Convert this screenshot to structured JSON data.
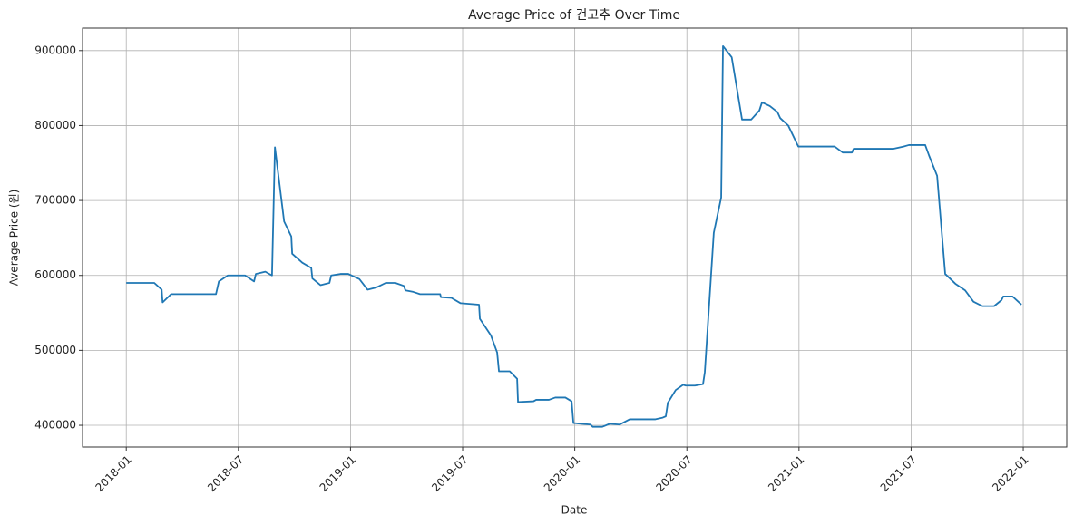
{
  "chart_data": {
    "type": "line",
    "title": "Average Price of 건고추 Over Time",
    "xlabel": "Date",
    "ylabel": "Average Price (원)",
    "grid": true,
    "xlim": [
      2017.805,
      2022.194
    ],
    "ylim": [
      371000,
      930000
    ],
    "xticks": [
      {
        "value": 2018.0,
        "label": "2018-01"
      },
      {
        "value": 2018.5,
        "label": "2018-07"
      },
      {
        "value": 2019.0,
        "label": "2019-01"
      },
      {
        "value": 2019.5,
        "label": "2019-07"
      },
      {
        "value": 2020.0,
        "label": "2020-01"
      },
      {
        "value": 2020.5,
        "label": "2020-07"
      },
      {
        "value": 2021.0,
        "label": "2021-01"
      },
      {
        "value": 2021.5,
        "label": "2021-07"
      },
      {
        "value": 2022.0,
        "label": "2022-01"
      }
    ],
    "yticks": [
      400000,
      500000,
      600000,
      700000,
      800000,
      900000
    ],
    "x": [
      2018.0,
      2018.125,
      2018.158,
      2018.162,
      2018.2,
      2018.4,
      2018.413,
      2018.453,
      2018.53,
      2018.57,
      2018.578,
      2018.62,
      2018.65,
      2018.663,
      2018.704,
      2018.736,
      2018.74,
      2018.785,
      2018.825,
      2018.83,
      2018.866,
      2018.906,
      2018.914,
      2018.955,
      2018.99,
      2019.04,
      2019.076,
      2019.116,
      2019.157,
      2019.2,
      2019.238,
      2019.245,
      2019.28,
      2019.31,
      2019.4,
      2019.403,
      2019.45,
      2019.49,
      2019.573,
      2019.577,
      2019.626,
      2019.654,
      2019.662,
      2019.71,
      2019.743,
      2019.747,
      2019.816,
      2019.828,
      2019.885,
      2019.913,
      2019.958,
      2019.986,
      2019.994,
      2020.07,
      2020.08,
      2020.123,
      2020.156,
      2020.2,
      2020.245,
      2020.36,
      2020.39,
      2020.406,
      2020.415,
      2020.45,
      2020.483,
      2020.495,
      2020.536,
      2020.572,
      2020.58,
      2020.62,
      2020.653,
      2020.661,
      2020.7,
      2020.746,
      2020.787,
      2020.823,
      2020.835,
      2020.87,
      2020.904,
      2020.916,
      2020.952,
      2020.997,
      2021.159,
      2021.195,
      2021.236,
      2021.244,
      2021.422,
      2021.466,
      2021.49,
      2021.563,
      2021.58,
      2021.616,
      2021.652,
      2021.697,
      2021.741,
      2021.778,
      2021.818,
      2021.87,
      2021.903,
      2021.911,
      2021.952,
      2021.992
    ],
    "series": [
      {
        "name": "Average Price",
        "color": "#1f77b4",
        "values": [
          590000,
          590000,
          581000,
          564000,
          575000,
          575000,
          592000,
          600000,
          600000,
          592000,
          602000,
          605000,
          600000,
          771000,
          672000,
          652000,
          629000,
          617000,
          610000,
          596000,
          587000,
          590000,
          600000,
          602000,
          602000,
          595000,
          581000,
          584000,
          590000,
          590000,
          586000,
          580000,
          578000,
          575000,
          575000,
          571000,
          570000,
          563000,
          561000,
          542000,
          520000,
          497000,
          472000,
          472000,
          462000,
          431000,
          432000,
          434000,
          434000,
          437000,
          437000,
          432000,
          403000,
          401000,
          398000,
          398000,
          402000,
          401000,
          408000,
          408000,
          410000,
          412000,
          430000,
          447000,
          454000,
          453000,
          453000,
          455000,
          471000,
          657000,
          704000,
          906000,
          891000,
          808000,
          808000,
          820000,
          831000,
          826000,
          818000,
          810000,
          800000,
          772000,
          772000,
          764000,
          764000,
          769000,
          769000,
          772000,
          774000,
          774000,
          760000,
          733000,
          602000,
          589000,
          580000,
          565000,
          559000,
          559000,
          567000,
          572000,
          572000,
          561000
        ]
      }
    ]
  }
}
